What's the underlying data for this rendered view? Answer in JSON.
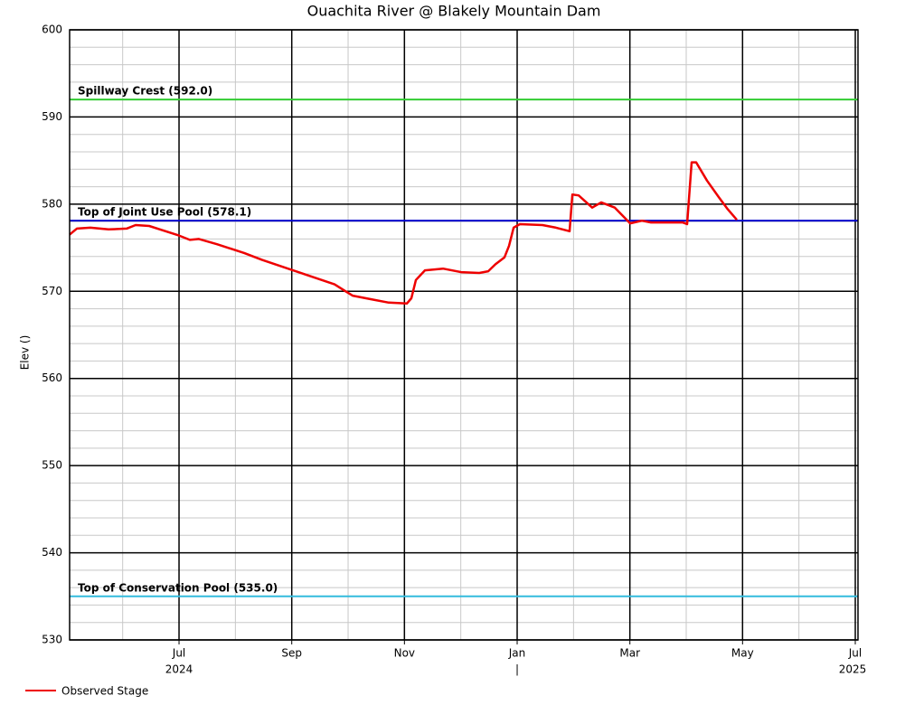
{
  "chart_data": {
    "type": "line",
    "title": "Ouachita River @ Blakely Mountain Dam",
    "y_label": "Elev ()",
    "xlim": [
      2024.3382,
      2025.504
    ],
    "ylim": [
      530,
      600
    ],
    "yticks": [
      530,
      540,
      550,
      560,
      570,
      580,
      590,
      600
    ],
    "xticks": [
      {
        "value": 2024.5,
        "label": "Jul"
      },
      {
        "value": 2024.6667,
        "label": "Sep"
      },
      {
        "value": 2024.8333,
        "label": "Nov"
      },
      {
        "value": 2025.0,
        "label": "Jan"
      },
      {
        "value": 2025.1667,
        "label": "Mar"
      },
      {
        "value": 2025.3333,
        "label": "May"
      },
      {
        "value": 2025.5,
        "label": "Jul"
      }
    ],
    "year_labels": [
      {
        "value": 2024.5,
        "label": "2024"
      },
      {
        "value": 2025.0,
        "label": "|"
      },
      {
        "value": 2025.496,
        "label": "2025"
      }
    ],
    "grid": true,
    "reference_lines": [
      {
        "label": "Spillway Crest (592.0)",
        "value": 592.0,
        "color": "#33cc33"
      },
      {
        "label": "Top of Joint Use Pool (578.1)",
        "value": 578.1,
        "color": "#0000cc"
      },
      {
        "label": "Top of Conservation Pool (535.0)",
        "value": 535.0,
        "color": "#33bbdd"
      }
    ],
    "legend": "bottom-left",
    "series": [
      {
        "name": "Observed Stage",
        "color": "#ee0000",
        "x": [
          2024.3382,
          2024.3489,
          2024.369,
          2024.3957,
          2024.4225,
          2024.4358,
          2024.4559,
          2024.4759,
          2024.5,
          2024.516,
          2024.5294,
          2024.5561,
          2024.5963,
          2024.623,
          2024.6497,
          2024.6765,
          2024.7032,
          2024.7299,
          2024.7567,
          2024.7834,
          2024.8102,
          2024.8369,
          2024.8436,
          2024.8503,
          2024.8636,
          2024.8904,
          2024.9171,
          2024.9439,
          2024.9572,
          2024.9679,
          2024.9813,
          2024.988,
          2024.9947,
          2025.004,
          2025.0374,
          2025.0575,
          2025.0775,
          2025.0816,
          2025.0909,
          2025.111,
          2025.1243,
          2025.1444,
          2025.1671,
          2025.1845,
          2025.1979,
          2025.2447,
          2025.2513,
          2025.258,
          2025.2647,
          2025.2807,
          2025.2981,
          2025.3115,
          2025.3249
        ],
        "values": [
          576.5,
          577.2,
          577.3,
          577.1,
          577.2,
          577.6,
          577.5,
          577.0,
          576.4,
          575.9,
          576.0,
          575.4,
          574.4,
          573.6,
          572.9,
          572.2,
          571.5,
          570.8,
          569.5,
          569.1,
          568.7,
          568.6,
          569.2,
          571.3,
          572.4,
          572.6,
          572.2,
          572.1,
          572.3,
          573.1,
          573.9,
          575.2,
          577.3,
          577.7,
          577.6,
          577.3,
          576.9,
          581.1,
          581.0,
          579.6,
          580.2,
          579.6,
          577.8,
          578.1,
          577.9,
          577.9,
          577.7,
          584.8,
          584.8,
          582.7,
          580.8,
          579.4,
          578.2
        ]
      }
    ]
  }
}
